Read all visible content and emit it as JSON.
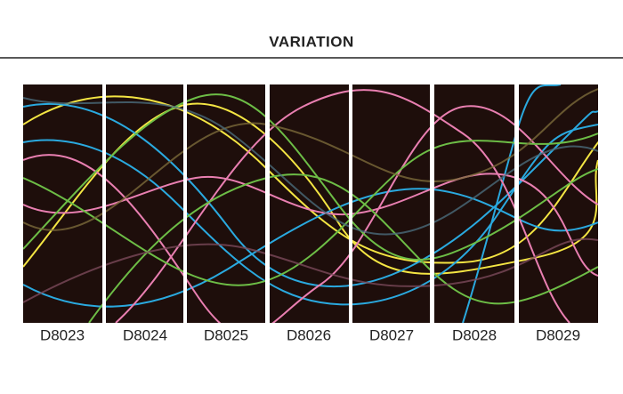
{
  "header": {
    "title": "VARIATION"
  },
  "items": [
    {
      "label": "D8023"
    },
    {
      "label": "D8024"
    },
    {
      "label": "D8025"
    },
    {
      "label": "D8026"
    },
    {
      "label": "D8027"
    },
    {
      "label": "D8028"
    },
    {
      "label": "D8029"
    }
  ]
}
